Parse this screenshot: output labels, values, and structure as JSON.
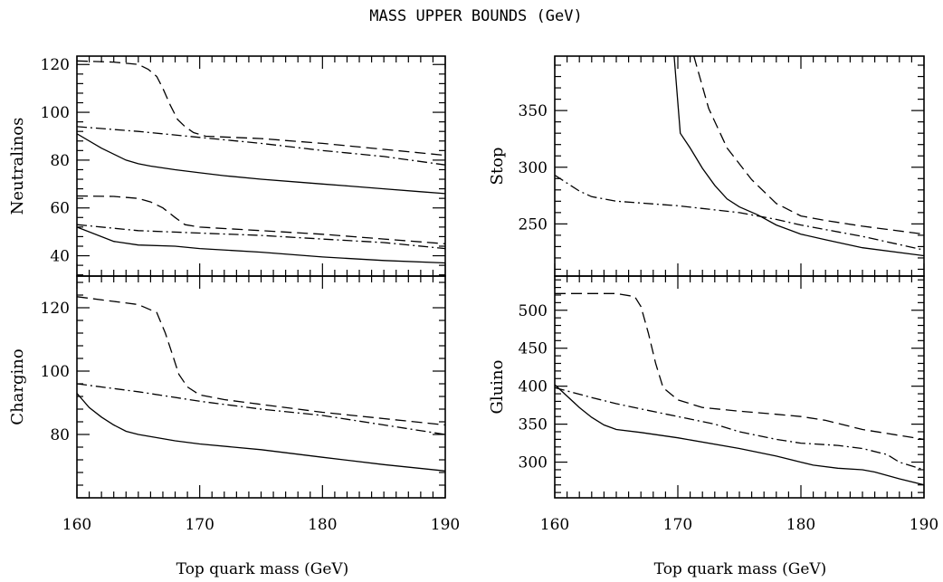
{
  "figure": {
    "title": "MASS UPPER BOUNDS (GeV)",
    "xlabel": "Top quark mass (GeV)"
  },
  "chart_data": [
    {
      "type": "line",
      "id": "neutralinos",
      "ylabel": "Neutralinos",
      "xlim": [
        160,
        190
      ],
      "ylim": [
        31.5,
        123.5
      ],
      "xticks": [
        160,
        170,
        180,
        190
      ],
      "yticks": [
        40,
        60,
        80,
        100,
        120
      ],
      "xtick_labels": [
        "",
        "",
        "",
        ""
      ],
      "ytick_labels": [
        "40",
        "60",
        "80",
        "100",
        "120"
      ],
      "series": [
        {
          "style": "solid",
          "x": [
            160,
            162,
            164,
            165,
            166,
            168,
            170,
            172,
            175,
            178,
            180,
            182,
            185,
            188,
            190
          ],
          "y": [
            91,
            85,
            80,
            78.5,
            77.5,
            76,
            74.7,
            73.5,
            72,
            70.8,
            70,
            69.2,
            68,
            66.8,
            66
          ]
        },
        {
          "style": "dashed",
          "x": [
            160,
            163,
            165,
            165.8,
            166.5,
            167,
            167.6,
            168.2,
            168.8,
            169.5,
            170.5,
            175,
            180,
            185,
            190
          ],
          "y": [
            121.5,
            121,
            120,
            118,
            115,
            110,
            103,
            97,
            94,
            91.5,
            90,
            89,
            87,
            84.5,
            82
          ]
        },
        {
          "style": "dashdot",
          "x": [
            160,
            165,
            170,
            175,
            180,
            185,
            190
          ],
          "y": [
            94,
            92,
            89.5,
            87,
            84,
            81.5,
            78
          ]
        },
        {
          "style": "solid",
          "x": [
            160,
            163,
            165,
            168,
            170,
            175,
            180,
            185,
            190
          ],
          "y": [
            52,
            46,
            44.5,
            44,
            43,
            41.5,
            39.5,
            38,
            37
          ]
        },
        {
          "style": "dashed",
          "x": [
            160,
            163,
            165,
            166,
            167,
            168,
            168.8,
            170,
            175,
            180,
            185,
            190
          ],
          "y": [
            65,
            64.8,
            64,
            62.5,
            60,
            56,
            53,
            52,
            50.5,
            49,
            47,
            45
          ]
        },
        {
          "style": "dashdot",
          "x": [
            160,
            165,
            170,
            175,
            180,
            185,
            190
          ],
          "y": [
            53,
            50.5,
            49.5,
            48.5,
            47,
            45.5,
            43
          ]
        }
      ]
    },
    {
      "type": "line",
      "id": "chargino",
      "ylabel": "Chargino",
      "xlim": [
        160,
        190
      ],
      "ylim": [
        60,
        130
      ],
      "xticks": [
        160,
        170,
        180,
        190
      ],
      "yticks": [
        80,
        100,
        120
      ],
      "xtick_labels": [
        "160",
        "170",
        "180",
        "190"
      ],
      "ytick_labels": [
        "80",
        "100",
        "120"
      ],
      "series": [
        {
          "style": "solid",
          "x": [
            160,
            161,
            162,
            163,
            164,
            165,
            168,
            170,
            175,
            180,
            185,
            190
          ],
          "y": [
            93,
            88.5,
            85.5,
            83,
            81,
            80,
            78,
            77,
            75.2,
            72.8,
            70.5,
            68.5
          ]
        },
        {
          "style": "dashed",
          "x": [
            160,
            163,
            165,
            166.5,
            167.2,
            167.8,
            168.3,
            169,
            170,
            172,
            175,
            180,
            185,
            190
          ],
          "y": [
            123.5,
            122,
            121,
            118.5,
            112,
            105,
            99,
            95,
            92.5,
            91,
            89.5,
            87,
            85,
            83
          ]
        },
        {
          "style": "dashdot",
          "x": [
            160,
            165,
            170,
            175,
            180,
            185,
            190
          ],
          "y": [
            96,
            93.5,
            90.5,
            88,
            86,
            83,
            80
          ]
        }
      ]
    },
    {
      "type": "line",
      "id": "stop",
      "ylabel": "Stop",
      "xlim": [
        160,
        190
      ],
      "ylim": [
        204,
        398
      ],
      "xticks": [
        160,
        170,
        180,
        190
      ],
      "yticks": [
        250,
        300,
        350
      ],
      "xtick_labels": [
        "",
        "",
        "",
        ""
      ],
      "ytick_labels": [
        "250",
        "300",
        "350"
      ],
      "series": [
        {
          "style": "solid",
          "x": [
            169.7,
            170.2,
            171,
            172,
            173,
            174,
            175,
            176.5,
            178,
            180,
            182,
            185,
            190
          ],
          "y": [
            398,
            330,
            317,
            299,
            284,
            272,
            265,
            258,
            249,
            241,
            236,
            229,
            222
          ]
        },
        {
          "style": "dashed",
          "x": [
            171.3,
            172.5,
            174,
            176,
            178,
            180,
            182,
            185,
            190
          ],
          "y": [
            398,
            352,
            317,
            289,
            268,
            257,
            253,
            248,
            241
          ]
        },
        {
          "style": "dashdot",
          "x": [
            160,
            161,
            162,
            163,
            165,
            170,
            175,
            178,
            180,
            185,
            190
          ],
          "y": [
            293,
            286,
            279,
            274,
            270,
            266,
            260,
            254,
            249,
            239,
            227
          ]
        }
      ]
    },
    {
      "type": "line",
      "id": "gluino",
      "ylabel": "Gluino",
      "xlim": [
        160,
        190
      ],
      "ylim": [
        253,
        545
      ],
      "xticks": [
        160,
        170,
        180,
        190
      ],
      "yticks": [
        300,
        350,
        400,
        450,
        500
      ],
      "xtick_labels": [
        "160",
        "170",
        "180",
        "190"
      ],
      "ytick_labels": [
        "300",
        "350",
        "400",
        "450",
        "500"
      ],
      "series": [
        {
          "style": "solid",
          "x": [
            160,
            161,
            162,
            163,
            164,
            165,
            167,
            170,
            175,
            178,
            180,
            181,
            183,
            185,
            186,
            188,
            190
          ],
          "y": [
            402,
            387,
            372,
            359,
            349,
            343,
            339,
            332,
            318,
            308,
            300,
            296,
            292,
            290,
            287,
            278,
            270
          ]
        },
        {
          "style": "dashed",
          "x": [
            160,
            165,
            166.5,
            167,
            167.6,
            168.2,
            168.8,
            170,
            172,
            175,
            178,
            180,
            182,
            185,
            190
          ],
          "y": [
            522,
            522,
            518,
            505,
            470,
            430,
            398,
            382,
            372,
            367,
            363,
            360,
            355,
            343,
            330
          ]
        },
        {
          "style": "dashdot",
          "x": [
            160,
            163,
            165,
            167,
            170,
            173,
            175,
            178,
            180,
            183,
            185,
            187,
            188,
            190
          ],
          "y": [
            398,
            385,
            377,
            370,
            360,
            350,
            340,
            330,
            325,
            322,
            318,
            310,
            300,
            290
          ]
        }
      ]
    }
  ]
}
